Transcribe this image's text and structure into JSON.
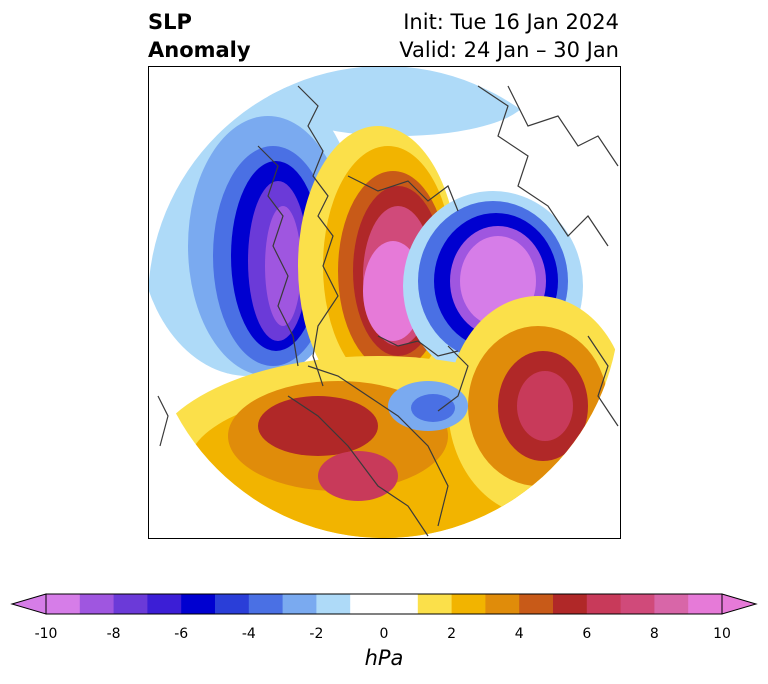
{
  "title": {
    "left_line1": "SLP",
    "left_line2": "Anomaly",
    "init": "Init: Tue 16 Jan 2024",
    "valid": "Valid: 24 Jan – 30 Jan"
  },
  "colorbar": {
    "units": "hPa",
    "ticks": [
      "-10",
      "-8",
      "-6",
      "-4",
      "-2",
      "0",
      "2",
      "4",
      "6",
      "8",
      "10"
    ],
    "range": [
      -10,
      10
    ],
    "step": 1,
    "extend": "both",
    "colors": [
      "#d67de8",
      "#9f56e0",
      "#6b3ad8",
      "#3c1ed6",
      "#0000d0",
      "#2a3ed8",
      "#4a70e4",
      "#7aaaf0",
      "#aedaf8",
      "#ffffff",
      "#ffffff",
      "#fbe04a",
      "#f2b400",
      "#e08c0a",
      "#c85a18",
      "#b02828",
      "#c83a5a",
      "#d04a7a",
      "#d866a8",
      "#e67ad8"
    ]
  },
  "map": {
    "projection": "north-polar-stereographic",
    "coastline_color": "#3a3a3a"
  }
}
